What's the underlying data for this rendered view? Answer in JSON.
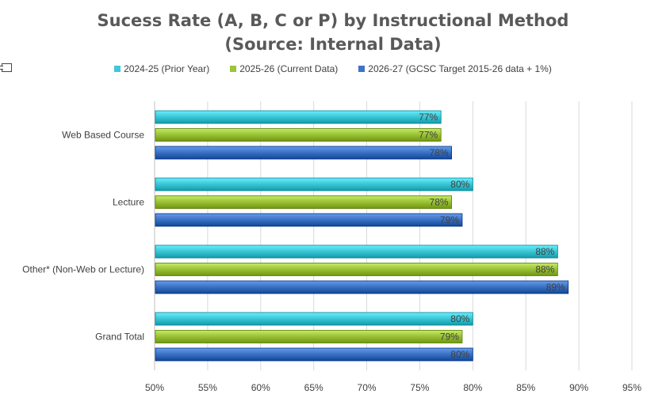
{
  "chart_data": {
    "type": "bar",
    "orientation": "horizontal",
    "title": "Sucess Rate (A, B, C or P) by Instructional Method",
    "subtitle": "(Source: Internal Data)",
    "categories": [
      "Web Based Course",
      "Lecture",
      "Other* (Non-Web or Lecture)",
      "Grand Total"
    ],
    "series": [
      {
        "name": "2024-25 (Prior Year)",
        "values": [
          77,
          80,
          88,
          80
        ],
        "labels": [
          "77%",
          "80%",
          "88%",
          "80%"
        ],
        "color": "#3FC8D8"
      },
      {
        "name": "2025-26 (Current Data)",
        "values": [
          77,
          78,
          88,
          79
        ],
        "labels": [
          "77%",
          "78%",
          "88%",
          "79%"
        ],
        "color": "#9DC43B"
      },
      {
        "name": "2026-27 (GCSC Target 2015-26 data + 1%)",
        "values": [
          78,
          79,
          89,
          80
        ],
        "labels": [
          "78%",
          "79%",
          "89%",
          "80%"
        ],
        "color": "#3D74C6"
      }
    ],
    "xlim": [
      50,
      95
    ],
    "xticks": [
      "50%",
      "55%",
      "60%",
      "65%",
      "70%",
      "75%",
      "80%",
      "85%",
      "90%",
      "95%"
    ],
    "grid": "vertical",
    "legend_position": "top"
  }
}
